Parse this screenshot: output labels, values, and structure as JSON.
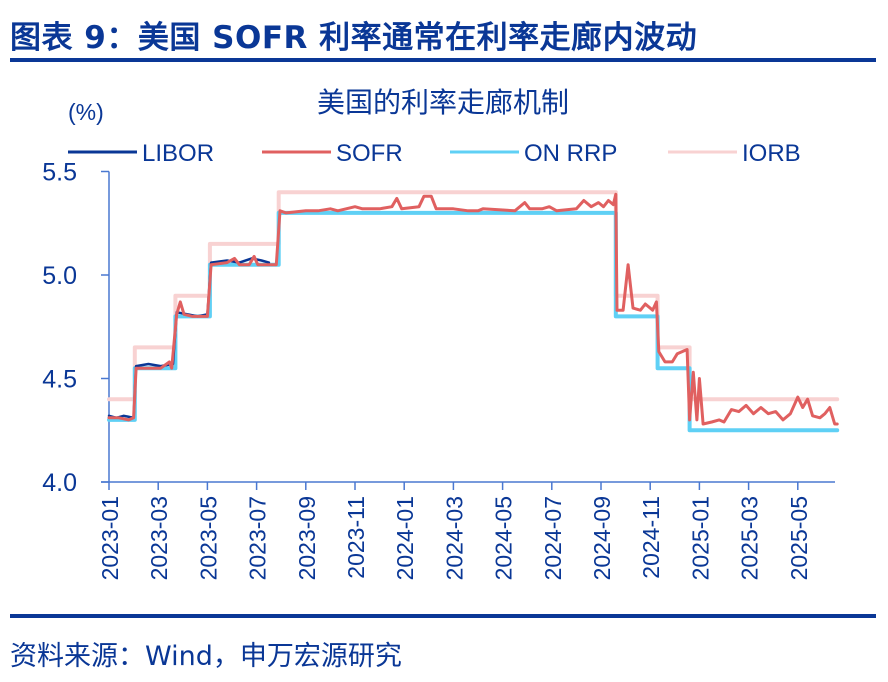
{
  "figure": {
    "title": "图表 9：美国 SOFR 利率通常在利率走廊内波动",
    "source": "资料来源：Wind，申万宏源研究"
  },
  "chart_data": {
    "type": "line",
    "title": "美国的利率走廊机制",
    "ylabel": "(%)",
    "xlabel": "",
    "ylim": [
      4.0,
      5.5
    ],
    "yticks": [
      "5.5",
      "5.0",
      "4.5",
      "4.0"
    ],
    "ytick_values": [
      5.5,
      5.0,
      4.5,
      4.0
    ],
    "xlim": [
      "2023-01-01",
      "2025-06-20"
    ],
    "xticks": [
      "2023-01",
      "2023-03",
      "2023-05",
      "2023-07",
      "2023-09",
      "2023-11",
      "2024-01",
      "2024-03",
      "2024-05",
      "2024-07",
      "2024-09",
      "2024-11",
      "2025-01",
      "2025-03",
      "2025-05"
    ],
    "grid": false,
    "legend_position": "top",
    "legend": [
      "LIBOR",
      "SOFR",
      "ON RRP",
      "IORB"
    ],
    "colors": {
      "LIBOR": "#0a3796",
      "SOFR": "#e06060",
      "ON RRP": "#5fd0f5",
      "IORB": "#f8d2d2",
      "axis": "#4a78d0",
      "text": "#0a3796"
    },
    "series": [
      {
        "name": "IORB",
        "kind": "step",
        "points": [
          [
            0.0,
            4.4
          ],
          [
            1.05,
            4.4
          ],
          [
            1.05,
            4.65
          ],
          [
            2.7,
            4.65
          ],
          [
            2.7,
            4.9
          ],
          [
            4.1,
            4.9
          ],
          [
            4.1,
            5.15
          ],
          [
            6.9,
            5.15
          ],
          [
            6.9,
            5.4
          ],
          [
            20.6,
            5.4
          ],
          [
            20.6,
            4.9
          ],
          [
            22.3,
            4.9
          ],
          [
            22.3,
            4.65
          ],
          [
            23.6,
            4.65
          ],
          [
            23.6,
            4.4
          ],
          [
            29.6,
            4.4
          ]
        ]
      },
      {
        "name": "ON RRP",
        "kind": "step",
        "points": [
          [
            0.0,
            4.3
          ],
          [
            1.05,
            4.3
          ],
          [
            1.05,
            4.55
          ],
          [
            2.7,
            4.55
          ],
          [
            2.7,
            4.8
          ],
          [
            4.1,
            4.8
          ],
          [
            4.1,
            5.05
          ],
          [
            6.9,
            5.05
          ],
          [
            6.9,
            5.3
          ],
          [
            20.6,
            5.3
          ],
          [
            20.6,
            4.8
          ],
          [
            22.3,
            4.8
          ],
          [
            22.3,
            4.55
          ],
          [
            23.6,
            4.55
          ],
          [
            23.6,
            4.25
          ],
          [
            29.6,
            4.25
          ]
        ]
      },
      {
        "name": "LIBOR",
        "kind": "line",
        "points": [
          [
            0.0,
            4.32
          ],
          [
            0.3,
            4.31
          ],
          [
            0.6,
            4.32
          ],
          [
            1.0,
            4.31
          ],
          [
            1.1,
            4.56
          ],
          [
            1.6,
            4.57
          ],
          [
            2.1,
            4.56
          ],
          [
            2.6,
            4.57
          ],
          [
            2.75,
            4.82
          ],
          [
            3.2,
            4.81
          ],
          [
            3.6,
            4.8
          ],
          [
            4.0,
            4.81
          ],
          [
            4.15,
            5.06
          ],
          [
            4.8,
            5.07
          ],
          [
            5.3,
            5.06
          ],
          [
            5.8,
            5.08
          ],
          [
            6.2,
            5.07
          ],
          [
            6.5,
            5.06
          ]
        ]
      },
      {
        "name": "SOFR",
        "kind": "line",
        "points": [
          [
            0.0,
            4.31
          ],
          [
            0.4,
            4.31
          ],
          [
            0.8,
            4.3
          ],
          [
            1.0,
            4.31
          ],
          [
            1.1,
            4.55
          ],
          [
            1.6,
            4.55
          ],
          [
            2.1,
            4.55
          ],
          [
            2.45,
            4.58
          ],
          [
            2.55,
            4.55
          ],
          [
            2.75,
            4.81
          ],
          [
            2.9,
            4.87
          ],
          [
            3.05,
            4.81
          ],
          [
            3.4,
            4.8
          ],
          [
            4.0,
            4.8
          ],
          [
            4.15,
            5.05
          ],
          [
            4.8,
            5.06
          ],
          [
            5.1,
            5.08
          ],
          [
            5.3,
            5.05
          ],
          [
            5.7,
            5.05
          ],
          [
            5.9,
            5.09
          ],
          [
            6.05,
            5.05
          ],
          [
            6.8,
            5.05
          ],
          [
            6.95,
            5.31
          ],
          [
            7.2,
            5.3
          ],
          [
            8.0,
            5.31
          ],
          [
            8.5,
            5.31
          ],
          [
            9.0,
            5.32
          ],
          [
            9.3,
            5.31
          ],
          [
            10.0,
            5.33
          ],
          [
            10.3,
            5.32
          ],
          [
            11.0,
            5.32
          ],
          [
            11.5,
            5.33
          ],
          [
            11.7,
            5.37
          ],
          [
            11.9,
            5.32
          ],
          [
            12.6,
            5.33
          ],
          [
            12.8,
            5.38
          ],
          [
            13.1,
            5.38
          ],
          [
            13.3,
            5.32
          ],
          [
            14.0,
            5.32
          ],
          [
            14.6,
            5.31
          ],
          [
            15.0,
            5.31
          ],
          [
            15.2,
            5.32
          ],
          [
            16.5,
            5.31
          ],
          [
            16.9,
            5.35
          ],
          [
            17.1,
            5.32
          ],
          [
            17.6,
            5.32
          ],
          [
            17.9,
            5.33
          ],
          [
            18.2,
            5.31
          ],
          [
            19.0,
            5.32
          ],
          [
            19.3,
            5.36
          ],
          [
            19.6,
            5.33
          ],
          [
            19.9,
            5.35
          ],
          [
            20.1,
            5.33
          ],
          [
            20.3,
            5.36
          ],
          [
            20.5,
            5.34
          ],
          [
            20.6,
            5.39
          ],
          [
            20.65,
            4.83
          ],
          [
            20.9,
            4.83
          ],
          [
            21.1,
            5.05
          ],
          [
            21.3,
            4.84
          ],
          [
            21.6,
            4.83
          ],
          [
            21.8,
            4.86
          ],
          [
            22.1,
            4.83
          ],
          [
            22.25,
            4.87
          ],
          [
            22.35,
            4.63
          ],
          [
            22.6,
            4.58
          ],
          [
            22.9,
            4.58
          ],
          [
            23.1,
            4.62
          ],
          [
            23.3,
            4.63
          ],
          [
            23.5,
            4.64
          ],
          [
            23.6,
            4.3
          ],
          [
            23.75,
            4.53
          ],
          [
            23.9,
            4.3
          ],
          [
            24.0,
            4.5
          ],
          [
            24.15,
            4.28
          ],
          [
            24.5,
            4.29
          ],
          [
            24.8,
            4.3
          ],
          [
            25.0,
            4.29
          ],
          [
            25.3,
            4.35
          ],
          [
            25.6,
            4.34
          ],
          [
            25.9,
            4.37
          ],
          [
            26.2,
            4.33
          ],
          [
            26.5,
            4.36
          ],
          [
            26.8,
            4.33
          ],
          [
            27.1,
            4.34
          ],
          [
            27.4,
            4.3
          ],
          [
            27.7,
            4.33
          ],
          [
            28.0,
            4.41
          ],
          [
            28.2,
            4.36
          ],
          [
            28.4,
            4.4
          ],
          [
            28.6,
            4.32
          ],
          [
            28.9,
            4.31
          ],
          [
            29.1,
            4.33
          ],
          [
            29.3,
            4.36
          ],
          [
            29.5,
            4.28
          ],
          [
            29.6,
            4.28
          ]
        ]
      }
    ]
  }
}
